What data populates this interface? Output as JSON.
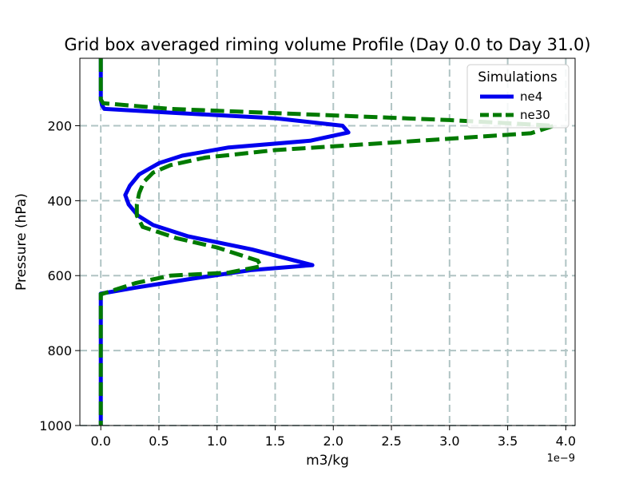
{
  "chart_data": {
    "type": "line",
    "title": "Grid box averaged riming volume Profile (Day 0.0 to Day 31.0)",
    "xlabel": "m3/kg",
    "ylabel": "Pressure (hPa)",
    "x_offset_label": "1e−9",
    "xlim": [
      -0.18,
      4.08
    ],
    "ylim": [
      1000,
      20
    ],
    "y_inverted": true,
    "xticks": [
      0.0,
      0.5,
      1.0,
      1.5,
      2.0,
      2.5,
      3.0,
      3.5,
      4.0
    ],
    "xtick_labels": [
      "0.0",
      "0.5",
      "1.0",
      "1.5",
      "2.0",
      "2.5",
      "3.0",
      "3.5",
      "4.0"
    ],
    "yticks": [
      200,
      400,
      600,
      800,
      1000
    ],
    "ytick_labels": [
      "200",
      "400",
      "600",
      "800",
      "1000"
    ],
    "grid": true,
    "legend": {
      "title": "Simulations",
      "placement": "top-right"
    },
    "series": [
      {
        "name": "ne4",
        "color": "#0000ee",
        "style": "solid",
        "points": [
          [
            0.0,
            20
          ],
          [
            0.0,
            60
          ],
          [
            0.0,
            100
          ],
          [
            0.0,
            130
          ],
          [
            0.01,
            145
          ],
          [
            0.03,
            155
          ],
          [
            0.6,
            165
          ],
          [
            1.5,
            180
          ],
          [
            2.08,
            200
          ],
          [
            2.13,
            218
          ],
          [
            1.8,
            240
          ],
          [
            1.1,
            258
          ],
          [
            0.7,
            280
          ],
          [
            0.5,
            300
          ],
          [
            0.33,
            330
          ],
          [
            0.25,
            360
          ],
          [
            0.21,
            385
          ],
          [
            0.24,
            410
          ],
          [
            0.32,
            440
          ],
          [
            0.45,
            465
          ],
          [
            0.75,
            495
          ],
          [
            1.3,
            530
          ],
          [
            1.82,
            572
          ],
          [
            1.3,
            585
          ],
          [
            0.75,
            610
          ],
          [
            0.3,
            632
          ],
          [
            0.0,
            648
          ],
          [
            0.0,
            700
          ],
          [
            0.0,
            800
          ],
          [
            0.0,
            900
          ],
          [
            0.0,
            1000
          ]
        ]
      },
      {
        "name": "ne30",
        "color": "#007a00",
        "style": "dashed",
        "points": [
          [
            0.0,
            20
          ],
          [
            0.0,
            60
          ],
          [
            0.0,
            100
          ],
          [
            0.0,
            130
          ],
          [
            0.02,
            140
          ],
          [
            0.6,
            155
          ],
          [
            1.8,
            170
          ],
          [
            3.0,
            185
          ],
          [
            3.9,
            200
          ],
          [
            3.7,
            220
          ],
          [
            2.5,
            245
          ],
          [
            1.5,
            265
          ],
          [
            0.9,
            285
          ],
          [
            0.6,
            305
          ],
          [
            0.45,
            325
          ],
          [
            0.37,
            350
          ],
          [
            0.33,
            380
          ],
          [
            0.31,
            410
          ],
          [
            0.31,
            440
          ],
          [
            0.36,
            470
          ],
          [
            0.65,
            500
          ],
          [
            1.0,
            525
          ],
          [
            1.35,
            560
          ],
          [
            1.38,
            575
          ],
          [
            1.1,
            592
          ],
          [
            0.6,
            600
          ],
          [
            0.3,
            620
          ],
          [
            0.1,
            640
          ],
          [
            0.0,
            650
          ],
          [
            0.0,
            700
          ],
          [
            0.0,
            800
          ],
          [
            0.0,
            900
          ],
          [
            0.0,
            1000
          ]
        ]
      }
    ]
  }
}
